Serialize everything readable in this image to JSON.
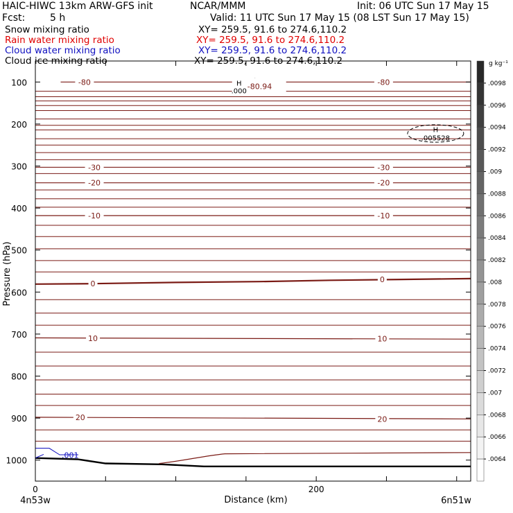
{
  "header": {
    "model": "HAIC-HIWC 13km ARW-GFS init",
    "org": "NCAR/MMM",
    "init": "Init: 06 UTC Sun 17 May 15",
    "fcst_label": "Fcst:",
    "fcst_value": "5 h",
    "valid": "Valid: 11 UTC Sun 17 May 15 (08 LST Sun 17 May 15)"
  },
  "fields": [
    {
      "name": "Snow mixing ratio",
      "xy": "XY= 259.5, 91.6 to 274.6,110.2",
      "color": "#000000"
    },
    {
      "name": "Rain water mixing ratio",
      "xy": "XY= 259.5, 91.6 to 274.6,110.2",
      "color": "#e00000"
    },
    {
      "name": "Cloud water mixing ratio",
      "xy": "XY= 259.5, 91.6 to 274.6,110.2",
      "color": "#1010c0"
    },
    {
      "name": "Cloud ice mixing ratio",
      "xy": "XY= 259.5, 91.6 to 274.6,110.2",
      "color": "#000000"
    }
  ],
  "chart_data": {
    "type": "contour cross-section",
    "xlabel": "Distance (km)",
    "ylabel": "Pressure (hPa)",
    "xlim": [
      0,
      310
    ],
    "ylim": [
      1050,
      50
    ],
    "x_ticks": [
      0,
      50,
      100,
      150,
      200,
      250,
      300
    ],
    "x_tick_labels": [
      "0",
      "",
      "",
      "",
      "200",
      "",
      ""
    ],
    "y_ticks": [
      100,
      200,
      300,
      400,
      500,
      600,
      700,
      800,
      900,
      1000
    ],
    "y_tick_labels": [
      "100",
      "200",
      "300",
      "400",
      "500",
      "600",
      "700",
      "800",
      "900",
      "1000"
    ],
    "endpoints": [
      "4n53w",
      "6n51w"
    ],
    "colorbar": {
      "unit": "g kg⁻¹",
      "labels": [
        ".0098",
        ".0096",
        ".0094",
        ".0092",
        ".009",
        ".0088",
        ".0086",
        ".0084",
        ".0082",
        ".008",
        ".0078",
        ".0076",
        ".0074",
        ".0072",
        ".007",
        ".0068",
        ".0066",
        ".0064"
      ]
    },
    "temperature_contours": [
      {
        "value": -80,
        "label": "-80",
        "points": [
          [
            18,
            100
          ],
          [
            310,
            100
          ]
        ]
      },
      {
        "value": -30,
        "label": "-30",
        "points": [
          [
            0,
            303
          ],
          [
            310,
            303
          ]
        ]
      },
      {
        "value": -20,
        "label": "-20",
        "points": [
          [
            0,
            340
          ],
          [
            310,
            340
          ]
        ]
      },
      {
        "value": -10,
        "label": "-10",
        "points": [
          [
            0,
            418
          ],
          [
            310,
            418
          ]
        ]
      },
      {
        "value": 0,
        "label": "0",
        "points": [
          [
            0,
            581
          ],
          [
            40,
            580
          ],
          [
            100,
            577
          ],
          [
            160,
            575
          ],
          [
            210,
            572
          ],
          [
            260,
            570
          ],
          [
            310,
            568
          ]
        ]
      },
      {
        "value": 10,
        "label": "10",
        "points": [
          [
            0,
            709
          ],
          [
            310,
            712
          ]
        ]
      },
      {
        "value": 20,
        "label": "20",
        "points": [
          [
            0,
            898
          ],
          [
            310,
            902
          ]
        ]
      }
    ],
    "temperature_labels": [
      {
        "text": "-80",
        "x": 35,
        "p": 100
      },
      {
        "text": "-80",
        "x": 248,
        "p": 100
      },
      {
        "text": "-30",
        "x": 42,
        "p": 303
      },
      {
        "text": "-30",
        "x": 248,
        "p": 303
      },
      {
        "text": "-20",
        "x": 42,
        "p": 340
      },
      {
        "text": "-20",
        "x": 248,
        "p": 340
      },
      {
        "text": "-10",
        "x": 42,
        "p": 418
      },
      {
        "text": "-10",
        "x": 248,
        "p": 418
      },
      {
        "text": "0",
        "x": 41,
        "p": 580
      },
      {
        "text": "0",
        "x": 247,
        "p": 570
      },
      {
        "text": "10",
        "x": 41,
        "p": 710
      },
      {
        "text": "10",
        "x": 247,
        "p": 711
      },
      {
        "text": "20",
        "x": 32,
        "p": 898
      },
      {
        "text": "20",
        "x": 247,
        "p": 902
      }
    ],
    "extra_isotherm_pressures": [
      122,
      135,
      145,
      156,
      168,
      188,
      203,
      214,
      235,
      250,
      268,
      285,
      318,
      357,
      378,
      398,
      441,
      468,
      497,
      525,
      552,
      618,
      650,
      679,
      743,
      776,
      809,
      843,
      870,
      928,
      955
    ],
    "extremes": [
      {
        "type": "L",
        "x": 157,
        "p": 95
      },
      {
        "type": "H",
        "x": 145,
        "p": 104,
        "value": ".000",
        "text": "-80.94"
      },
      {
        "type": "H",
        "x": 285,
        "p": 214,
        "value": ".005528"
      }
    ],
    "cloud_water": {
      "label": ".001",
      "color": "#1010c0"
    },
    "cloud_ice_max_region": {
      "x": [
        265,
        305
      ],
      "p": [
        205,
        240
      ]
    },
    "terrain": [
      [
        0,
        995
      ],
      [
        30,
        998
      ],
      [
        50,
        1008
      ],
      [
        90,
        1010
      ],
      [
        120,
        1015
      ],
      [
        310,
        1015
      ]
    ]
  }
}
